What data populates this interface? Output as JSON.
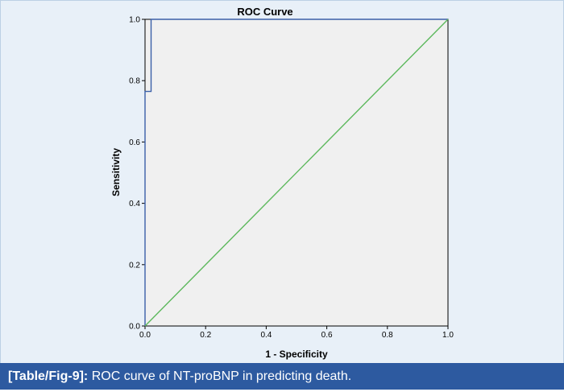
{
  "colors": {
    "panel_bg": "#e8f0f8",
    "plot_bg": "#f0f0f0",
    "roc_line": "#3a5fa8",
    "reference_line": "#5cb85c",
    "caption_bg": "#2d5aa0",
    "caption_text": "#ffffff"
  },
  "chart_data": {
    "type": "line",
    "title": "ROC Curve",
    "xlabel": "1 - Specificity",
    "ylabel": "Sensitivity",
    "xlim": [
      0.0,
      1.0
    ],
    "ylim": [
      0.0,
      1.0
    ],
    "x_ticks": [
      "0.0",
      "0.2",
      "0.4",
      "0.6",
      "0.8",
      "1.0"
    ],
    "y_ticks": [
      "0.0",
      "0.2",
      "0.4",
      "0.6",
      "0.8",
      "1.0"
    ],
    "grid": false,
    "series": [
      {
        "points": [
          [
            0.0,
            0.0
          ],
          [
            0.0,
            0.765
          ],
          [
            0.02,
            0.765
          ],
          [
            0.02,
            1.0
          ],
          [
            1.0,
            1.0
          ]
        ]
      },
      {
        "points": [
          [
            0.0,
            0.0
          ],
          [
            1.0,
            1.0
          ]
        ]
      }
    ]
  },
  "caption": {
    "tag": "[Table/Fig-9]:",
    "text": " ROC curve of NT-proBNP in predicting death."
  }
}
